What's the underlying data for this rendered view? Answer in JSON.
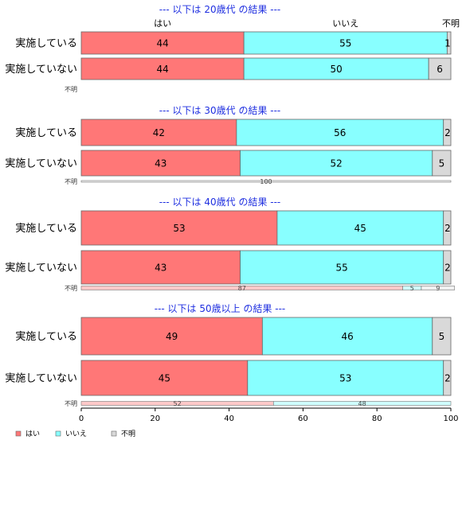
{
  "chart_data": {
    "type": "bar",
    "stacked": "horizontal-100",
    "categories": [
      "はい",
      "いいえ",
      "不明"
    ],
    "colors": {
      "はい": "#ff7777",
      "いいえ": "#88ffff",
      "不明": "#d9d9d9"
    },
    "xlim": [
      0,
      100
    ],
    "xticks": [
      "0",
      "20",
      "40",
      "60",
      "80",
      "100"
    ],
    "legend": {
      "position": "bottom-left",
      "items": [
        "はい",
        "いいえ",
        "不明"
      ]
    },
    "panels": [
      {
        "title": "--- 以下は 20歳代 の結果 ---",
        "header_labels": [
          "はい",
          "いいえ",
          "不明"
        ],
        "rows": [
          {
            "label": "実施している",
            "values": [
              44,
              55,
              1
            ]
          },
          {
            "label": "実施していない",
            "values": [
              44,
              50,
              6
            ]
          }
        ],
        "unknown_label": "不明",
        "unknown_values": []
      },
      {
        "title": "--- 以下は 30歳代 の結果 ---",
        "rows": [
          {
            "label": "実施している",
            "values": [
              42,
              56,
              2
            ]
          },
          {
            "label": "実施していない",
            "values": [
              43,
              52,
              5
            ]
          }
        ],
        "unknown_label": "不明",
        "unknown_values": [
          0,
          0,
          100
        ]
      },
      {
        "title": "--- 以下は 40歳代 の結果 ---",
        "rows": [
          {
            "label": "実施している",
            "values": [
              53,
              45,
              2
            ]
          },
          {
            "label": "実施していない",
            "values": [
              43,
              55,
              2
            ]
          }
        ],
        "unknown_label": "不明",
        "unknown_values": [
          87,
          5,
          9
        ]
      },
      {
        "title": "--- 以下は 50歳以上 の結果 ---",
        "rows": [
          {
            "label": "実施している",
            "values": [
              49,
              46,
              5
            ]
          },
          {
            "label": "実施していない",
            "values": [
              45,
              53,
              2
            ]
          }
        ],
        "unknown_label": "不明",
        "unknown_values": [
          52,
          48,
          0
        ]
      }
    ]
  }
}
